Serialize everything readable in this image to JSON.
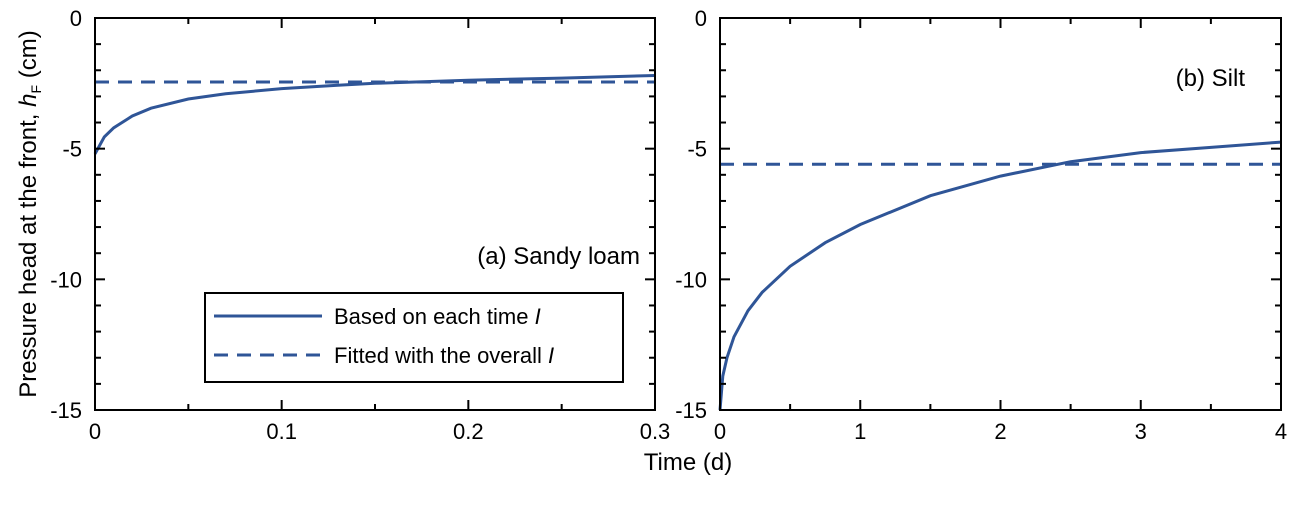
{
  "figure": {
    "xlabel": "Time (d)",
    "ylabel_main": "Pressure head at the front, ",
    "ylabel_var": "h",
    "ylabel_sub": "F",
    "ylabel_unit": " (cm)"
  },
  "legend": {
    "placement": "lower-left of panel (a)",
    "items": [
      {
        "text": "Based on each time ",
        "var": "I",
        "style": "solid"
      },
      {
        "text": "Fitted with the overall ",
        "var": "I",
        "style": "dashed"
      }
    ]
  },
  "colors": {
    "line": "#2f5597",
    "axis": "#000000"
  },
  "chart_data": [
    {
      "type": "line",
      "panel_label": "(a) Sandy loam",
      "xlim": [
        0,
        0.3
      ],
      "ylim": [
        -15,
        0
      ],
      "xticks": [
        0,
        0.1,
        0.2,
        0.3
      ],
      "xtick_labels": [
        "0",
        "0.1",
        "0.2",
        "0.3"
      ],
      "yticks": [
        -15,
        -10,
        -5,
        0
      ],
      "ytick_labels": [
        "-15",
        "-10",
        "-5",
        "0"
      ],
      "grid": false,
      "series": [
        {
          "style": "solid",
          "x": [
            0,
            0.005,
            0.01,
            0.02,
            0.03,
            0.05,
            0.07,
            0.1,
            0.13,
            0.15,
            0.2,
            0.25,
            0.3
          ],
          "y": [
            -5.2,
            -4.55,
            -4.2,
            -3.75,
            -3.45,
            -3.1,
            -2.9,
            -2.7,
            -2.57,
            -2.5,
            -2.38,
            -2.3,
            -2.2
          ]
        },
        {
          "style": "dashed",
          "x": [
            0,
            0.3
          ],
          "y": [
            -2.45,
            -2.45
          ]
        }
      ]
    },
    {
      "type": "line",
      "panel_label": "(b) Silt",
      "xlim": [
        0,
        4
      ],
      "ylim": [
        -15,
        0
      ],
      "xticks": [
        0,
        1,
        2,
        3,
        4
      ],
      "xtick_labels": [
        "0",
        "1",
        "2",
        "3",
        "4"
      ],
      "yticks": [
        -15,
        -10,
        -5,
        0
      ],
      "ytick_labels": [
        "-15",
        "-10",
        "-5",
        "0"
      ],
      "grid": false,
      "series": [
        {
          "style": "solid",
          "x": [
            0,
            0.02,
            0.05,
            0.1,
            0.2,
            0.3,
            0.5,
            0.75,
            1,
            1.5,
            2,
            2.5,
            3,
            3.5,
            4
          ],
          "y": [
            -15,
            -13.7,
            -13,
            -12.2,
            -11.2,
            -10.5,
            -9.5,
            -8.6,
            -7.9,
            -6.8,
            -6.05,
            -5.5,
            -5.15,
            -4.95,
            -4.75
          ]
        },
        {
          "style": "dashed",
          "x": [
            0,
            4
          ],
          "y": [
            -5.6,
            -5.6
          ]
        }
      ]
    }
  ]
}
